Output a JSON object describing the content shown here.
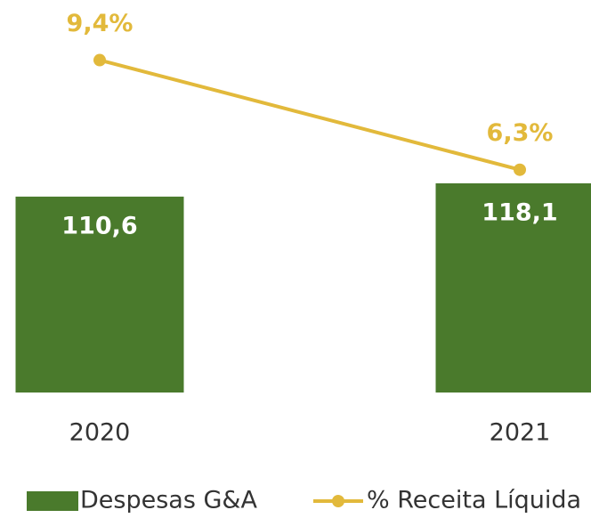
{
  "chart_data": {
    "type": "bar+line",
    "categories": [
      "2020",
      "2021"
    ],
    "series": [
      {
        "name": "Despesas G&A",
        "type": "bar",
        "color": "#4a7a2c",
        "values": [
          110.6,
          118.1
        ],
        "value_labels": [
          "110,6",
          "118,1"
        ]
      },
      {
        "name": "% Receita Líquida",
        "type": "line",
        "axis": "y2",
        "color": "#e2b93b",
        "values": [
          9.4,
          6.3
        ],
        "value_labels": [
          "9,4%",
          "6,3%"
        ]
      }
    ],
    "ylim": [
      0,
      221.6
    ],
    "y2lim": [
      0,
      11.1
    ],
    "legend": "bottom"
  }
}
